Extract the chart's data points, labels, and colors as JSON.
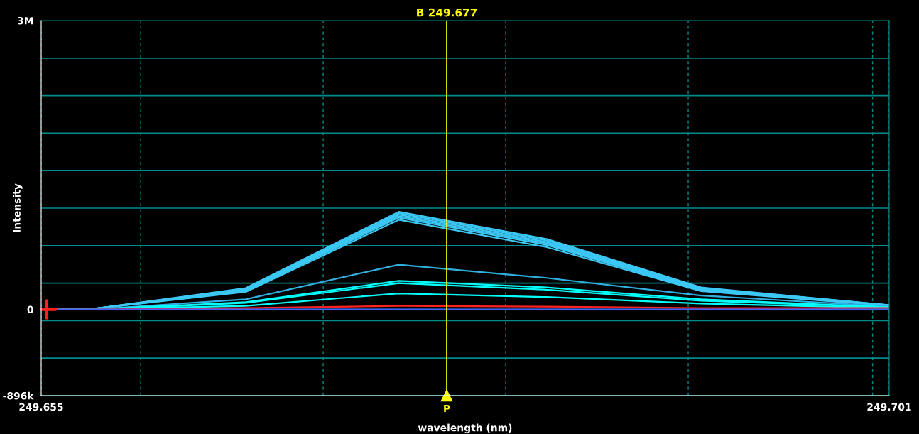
{
  "chart_data": {
    "type": "line",
    "xlabel": "wavelength (nm)",
    "ylabel": "Intensity",
    "x": [
      249.655,
      249.6578,
      249.6661,
      249.6744,
      249.6824,
      249.6908,
      249.701
    ],
    "series": [
      {
        "color": "#3cc8f4",
        "values": [
          0,
          5000,
          221000,
          1014000,
          732000,
          228000,
          44000
        ]
      },
      {
        "color": "#3cc8f4",
        "values": [
          0,
          5000,
          213000,
          999000,
          717000,
          221000,
          44000
        ]
      },
      {
        "color": "#3cc8f4",
        "values": [
          0,
          5000,
          205000,
          984000,
          701000,
          213000,
          44000
        ]
      },
      {
        "color": "#3cc8f4",
        "values": [
          0,
          5000,
          198000,
          969000,
          686000,
          205000,
          40000
        ]
      },
      {
        "color": "#3cc8f4",
        "values": [
          0,
          5000,
          190000,
          954000,
          671000,
          198000,
          40000
        ]
      },
      {
        "color": "#3cc8f4",
        "values": [
          0,
          5000,
          182000,
          931000,
          648000,
          190000,
          37000
        ]
      },
      {
        "color": "#30b0e0",
        "values": [
          0,
          0,
          105000,
          465000,
          327000,
          144000,
          29000
        ]
      },
      {
        "color": "#00ffff",
        "values": [
          0,
          0,
          75000,
          296000,
          228000,
          105000,
          21000
        ]
      },
      {
        "color": "#00ffff",
        "values": [
          0,
          0,
          67000,
          273000,
          205000,
          90000,
          21000
        ]
      },
      {
        "color": "#00ffff",
        "values": [
          0,
          0,
          37000,
          166000,
          128000,
          60000,
          14000
        ]
      },
      {
        "color": "#ff2020",
        "values": [
          0,
          0,
          14000,
          37000,
          29000,
          14000,
          14000
        ]
      },
      {
        "color": "#4060ff",
        "values": [
          0,
          0,
          0,
          0,
          0,
          0,
          0
        ]
      }
    ],
    "xlim": [
      249.655,
      249.701
    ],
    "xticks": [
      {
        "value": 249.655,
        "label": "249.655"
      },
      {
        "value": 249.6604,
        "label": null
      },
      {
        "value": 249.6703,
        "label": null
      },
      {
        "value": 249.6802,
        "label": null
      },
      {
        "value": 249.6901,
        "label": null
      },
      {
        "value": 249.7001,
        "label": null
      },
      {
        "value": 249.701,
        "label": "249.701"
      }
    ],
    "ylim": [
      -896000,
      3000000
    ],
    "yticks": [
      {
        "value": -896000,
        "label": "-896k"
      },
      {
        "value": -506400,
        "label": null
      },
      {
        "value": -116800,
        "label": null
      },
      {
        "value": 0,
        "label": "0"
      },
      {
        "value": 272800,
        "label": null
      },
      {
        "value": 662400,
        "label": null
      },
      {
        "value": 1052000,
        "label": null
      },
      {
        "value": 1441600,
        "label": null
      },
      {
        "value": 1831200,
        "label": null
      },
      {
        "value": 2220800,
        "label": null
      },
      {
        "value": 2610400,
        "label": null
      },
      {
        "value": 3000000,
        "label": "3M"
      }
    ],
    "grid": true,
    "ref_lines": [
      {
        "axis": "x",
        "value": 249.677,
        "label": "B 249.677",
        "color": "#ffff00"
      }
    ],
    "annotations": [
      {
        "text": "P",
        "x": 249.677,
        "y": -896000
      }
    ]
  }
}
